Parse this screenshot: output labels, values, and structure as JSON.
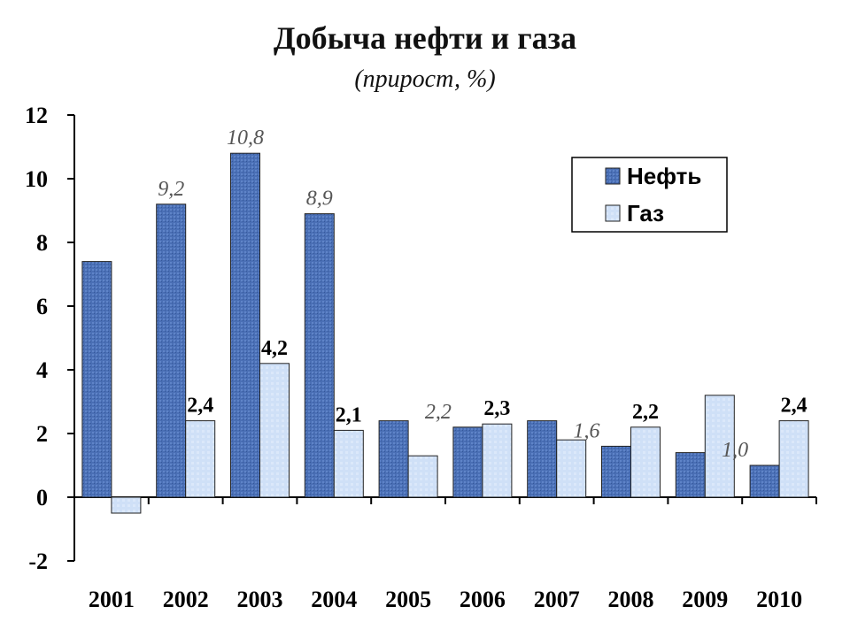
{
  "chart_data": {
    "type": "bar",
    "title": "Добыча нефти и газа",
    "subtitle": "(прирост, %)",
    "categories": [
      "2001",
      "2002",
      "2003",
      "2004",
      "2005",
      "2006",
      "2007",
      "2008",
      "2009",
      "2010"
    ],
    "series": [
      {
        "name": "Нефть",
        "values": [
          7.4,
          9.2,
          10.8,
          8.9,
          2.4,
          2.2,
          2.4,
          1.6,
          1.4,
          1.0
        ],
        "color": "#4a6fb5"
      },
      {
        "name": "Газ",
        "values": [
          -0.5,
          2.4,
          4.2,
          2.1,
          1.3,
          2.3,
          1.8,
          2.2,
          3.2,
          2.4
        ],
        "color": "#cfe0f7"
      }
    ],
    "data_labels": [
      {
        "series": 0,
        "index": 1,
        "text": "9,2"
      },
      {
        "series": 0,
        "index": 2,
        "text": "10,8"
      },
      {
        "series": 0,
        "index": 3,
        "text": "8,9"
      },
      {
        "series": 0,
        "index": 5,
        "text": "2,2"
      },
      {
        "series": 0,
        "index": 7,
        "text": "1,6"
      },
      {
        "series": 0,
        "index": 9,
        "text": "1,0"
      },
      {
        "series": 1,
        "index": 1,
        "text": "2,4"
      },
      {
        "series": 1,
        "index": 2,
        "text": "4,2"
      },
      {
        "series": 1,
        "index": 3,
        "text": "2,1"
      },
      {
        "series": 1,
        "index": 5,
        "text": "2,3"
      },
      {
        "series": 1,
        "index": 7,
        "text": "2,2"
      },
      {
        "series": 1,
        "index": 9,
        "text": "2,4"
      }
    ],
    "yticks": [
      "-2",
      "0",
      "2",
      "4",
      "6",
      "8",
      "10",
      "12"
    ],
    "ylim": [
      -2,
      12
    ],
    "legend_position": "top-right",
    "grid": false
  }
}
